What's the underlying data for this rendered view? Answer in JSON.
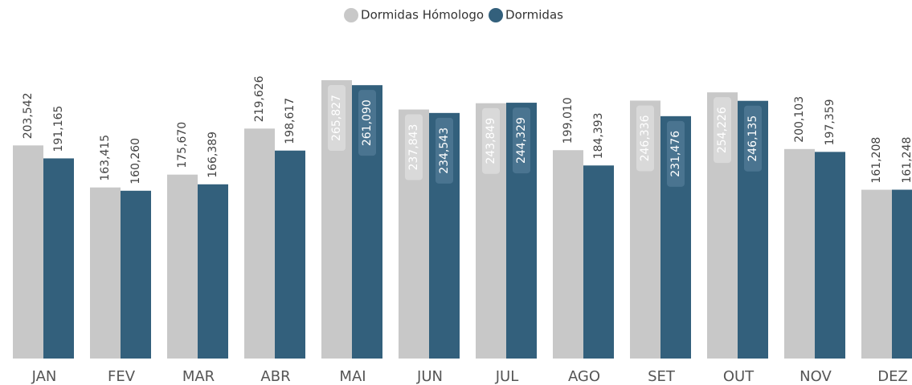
{
  "chart_data": {
    "type": "bar",
    "categories": [
      "JAN",
      "FEV",
      "MAR",
      "ABR",
      "MAI",
      "JUN",
      "JUL",
      "AGO",
      "SET",
      "OUT",
      "NOV",
      "DEZ"
    ],
    "series": [
      {
        "name": "Dormidas Hómologo",
        "color": "#c8c8c8",
        "values": [
          203542,
          163415,
          175670,
          219626,
          265827,
          237843,
          243849,
          199010,
          246336,
          254226,
          200103,
          161208
        ],
        "value_labels": [
          "203,542",
          "163,415",
          "175,670",
          "219,626",
          "265,827",
          "237,843",
          "243,849",
          "199,010",
          "246,336",
          "254,226",
          "200,103",
          "161,208"
        ]
      },
      {
        "name": "Dormidas",
        "color": "#33607c",
        "values": [
          191165,
          160260,
          166389,
          198617,
          261090,
          234543,
          244329,
          184393,
          231476,
          246135,
          197359,
          161248
        ],
        "value_labels": [
          "191,165",
          "160,260",
          "166,389",
          "198,617",
          "261,090",
          "234,543",
          "244,329",
          "184,393",
          "231,476",
          "246,135",
          "197,359",
          "161,248"
        ]
      }
    ],
    "legend": "top"
  }
}
